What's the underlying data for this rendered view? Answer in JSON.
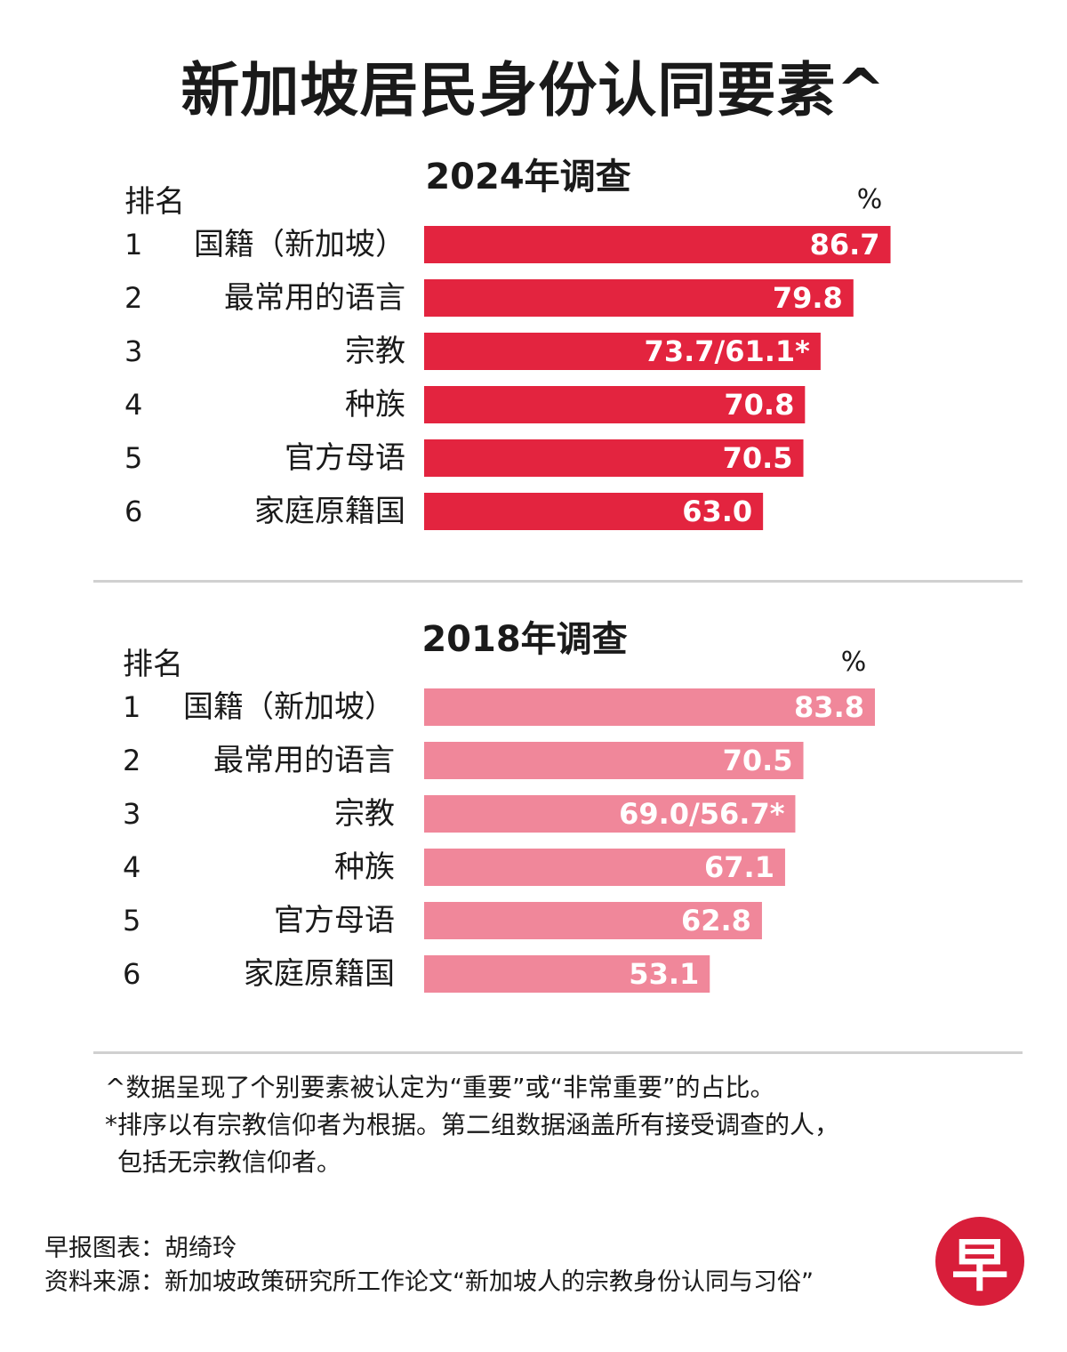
{
  "title": "新加坡居民身份认同要素^",
  "rank_header": "排名",
  "unit": "%",
  "colors": {
    "bar_2024": "#e3243f",
    "bar_2018": "#f0879a"
  },
  "chart_data": [
    {
      "type": "bar",
      "title": "2024年调查",
      "categories": [
        "国籍（新加坡）",
        "最常用的语言",
        "宗教",
        "种族",
        "官方母语",
        "家庭原籍国"
      ],
      "ranks": [
        "1",
        "2",
        "3",
        "4",
        "5",
        "6"
      ],
      "values": [
        86.7,
        79.8,
        73.7,
        70.8,
        70.5,
        63.0
      ],
      "labels": [
        "86.7",
        "79.8",
        "73.7/61.1*",
        "70.8",
        "70.5",
        "63.0"
      ],
      "secondary_values": {
        "宗教": 61.1
      },
      "ylabel": "%"
    },
    {
      "type": "bar",
      "title": "2018年调查",
      "categories": [
        "国籍（新加坡）",
        "最常用的语言",
        "宗教",
        "种族",
        "官方母语",
        "家庭原籍国"
      ],
      "ranks": [
        "1",
        "2",
        "3",
        "4",
        "5",
        "6"
      ],
      "values": [
        83.8,
        70.5,
        69.0,
        67.1,
        62.8,
        53.1
      ],
      "labels": [
        "83.8",
        "70.5",
        "69.0/56.7*",
        "67.1",
        "62.8",
        "53.1"
      ],
      "secondary_values": {
        "宗教": 56.7
      },
      "ylabel": "%"
    }
  ],
  "notes": [
    "^数据呈现了个别要素被认定为“重要”或“非常重要”的占比。",
    "*排序以有宗教信仰者为根据。第二组数据涵盖所有接受调查的人，",
    "包括无宗教信仰者。"
  ],
  "credits": {
    "chart_by": "早报图表：胡绮玲",
    "source": "资料来源：新加坡政策研究所工作论文“新加坡人的宗教身份认同与习俗”"
  },
  "logo_text": "早"
}
